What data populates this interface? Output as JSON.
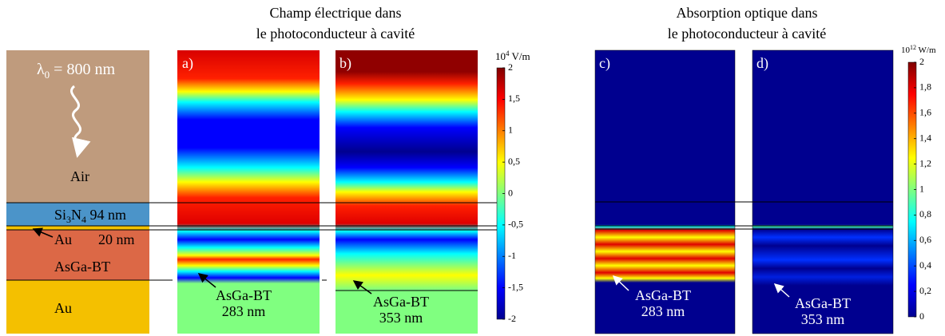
{
  "titles": {
    "left": [
      "Champ électrique dans",
      "le photoconducteur à cavité"
    ],
    "right": [
      "Absorption optique dans",
      "le photoconducteur à cavité"
    ]
  },
  "stack": {
    "wavelength": [
      "λ",
      "0",
      " = 800 nm"
    ],
    "air": "Air",
    "si3n4": [
      "Si",
      "3",
      "N",
      "4",
      " 94 nm"
    ],
    "au_thin": "Au",
    "au_thickness": "20 nm",
    "asga": "AsGa-BT",
    "au_bottom": "Au"
  },
  "panels": [
    {
      "label": "a)",
      "annotation": [
        "AsGa-BT",
        "283 nm"
      ]
    },
    {
      "label": "b)",
      "annotation": [
        "AsGa-BT",
        "353 nm"
      ]
    },
    {
      "label": "c)",
      "annotation": [
        "AsGa-BT",
        "283 nm"
      ]
    },
    {
      "label": "d)",
      "annotation": [
        "AsGa-BT",
        "353 nm"
      ]
    }
  ],
  "colorbars": [
    {
      "unit": [
        "10",
        "4",
        " V/m"
      ],
      "lim": [
        -2,
        2
      ],
      "ticks": [
        2,
        {
          "value": 1.5,
          "label": "1,5"
        },
        1,
        {
          "value": 0.5,
          "label": "0,5"
        },
        0,
        {
          "value": -0.5,
          "label": "-0,5"
        },
        -1,
        {
          "value": -1.5,
          "label": "-1,5"
        },
        -2
      ]
    },
    {
      "unit": [
        "10",
        "12",
        " W/m"
      ],
      "lim": [
        0,
        2
      ],
      "ticks": [
        2,
        {
          "value": 1.8,
          "label": "1,8"
        },
        {
          "value": 1.6,
          "label": "1,6"
        },
        {
          "value": 1.4,
          "label": "1,4"
        },
        {
          "value": 1.2,
          "label": "1,2"
        },
        1,
        {
          "value": 0.8,
          "label": "0,8"
        },
        {
          "value": 0.6,
          "label": "0,6"
        },
        {
          "value": 0.4,
          "label": "0,4"
        },
        {
          "value": 0.2,
          "label": "0,2"
        },
        0
      ]
    }
  ]
}
